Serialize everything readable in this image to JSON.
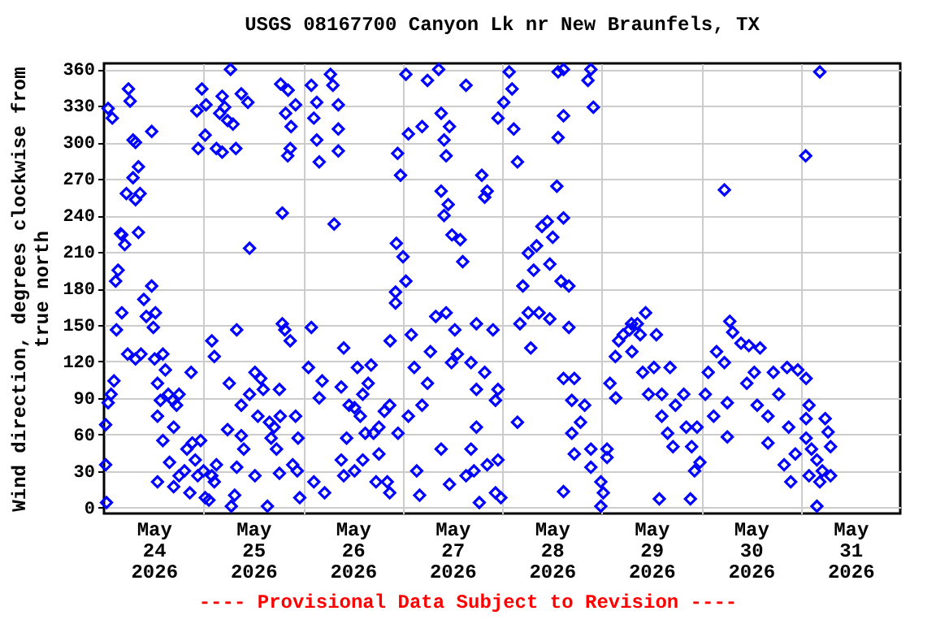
{
  "chart_data": {
    "type": "scatter",
    "title": "USGS 08167700 Canyon Lk nr New Braunfels, TX",
    "ylabel": "Wind direction, degrees clockwise from\ntrue north",
    "annotations": [
      "---- Provisional Data Subject to Revision ----"
    ],
    "xlim": [
      "2026-05-24T00:00",
      "2026-06-01T00:00"
    ],
    "xticks": [
      {
        "value": "2026-05-24T12:00",
        "label": "May\n24\n2026"
      },
      {
        "value": "2026-05-25T12:00",
        "label": "May\n25\n2026"
      },
      {
        "value": "2026-05-26T12:00",
        "label": "May\n26\n2026"
      },
      {
        "value": "2026-05-27T12:00",
        "label": "May\n27\n2026"
      },
      {
        "value": "2026-05-28T12:00",
        "label": "May\n28\n2026"
      },
      {
        "value": "2026-05-29T12:00",
        "label": "May\n29\n2026"
      },
      {
        "value": "2026-05-30T12:00",
        "label": "May\n30\n2026"
      },
      {
        "value": "2026-05-31T12:00",
        "label": "May\n31\n2026"
      },
      {
        "value": "2026-05-25T00:00",
        "label": null
      },
      {
        "value": "2026-05-26T00:00",
        "label": null
      },
      {
        "value": "2026-05-27T00:00",
        "label": null
      },
      {
        "value": "2026-05-28T00:00",
        "label": null
      },
      {
        "value": "2026-05-29T00:00",
        "label": null
      },
      {
        "value": "2026-05-30T00:00",
        "label": null
      },
      {
        "value": "2026-05-31T00:00",
        "label": null
      }
    ],
    "ylim": [
      -5,
      365
    ],
    "yticks": [
      0,
      30,
      60,
      90,
      120,
      150,
      180,
      210,
      240,
      270,
      300,
      330,
      360
    ],
    "grid": true,
    "marker": "diamond",
    "series": [
      {
        "color": "#0000ff",
        "x": [
          "2026-05-24T00:24",
          "2026-05-24T00:36",
          "2026-05-24T00:24",
          "2026-05-24T01:00",
          "2026-05-24T01:42",
          "2026-05-24T02:24",
          "2026-05-24T01:00",
          "2026-05-24T02:00",
          "2026-05-24T02:48",
          "2026-05-24T03:24",
          "2026-05-24T03:00",
          "2026-05-24T04:18",
          "2026-05-24T04:00",
          "2026-05-24T05:00",
          "2026-05-24T04:18",
          "2026-05-24T05:24",
          "2026-05-24T05:54",
          "2026-05-24T06:18",
          "2026-05-24T07:00",
          "2026-05-24T07:36",
          "2026-05-24T07:00",
          "2026-05-24T08:18",
          "2026-05-24T08:42",
          "2026-05-24T07:36",
          "2026-05-24T08:18",
          "2026-05-24T05:42",
          "2026-05-24T07:36",
          "2026-05-24T08:54",
          "2026-05-24T09:36",
          "2026-05-24T10:12",
          "2026-05-24T11:30",
          "2026-05-24T11:54",
          "2026-05-24T12:24",
          "2026-05-24T11:30",
          "2026-05-24T12:12",
          "2026-05-24T14:12",
          "2026-05-24T12:54",
          "2026-05-24T13:36",
          "2026-05-24T14:12",
          "2026-05-24T12:54",
          "2026-05-24T14:48",
          "2026-05-24T15:30",
          "2026-05-24T16:36",
          "2026-05-24T17:30",
          "2026-05-24T18:06",
          "2026-05-24T16:48",
          "2026-05-24T12:54",
          "2026-05-24T15:48",
          "2026-05-24T16:48",
          "2026-05-24T18:06",
          "2026-05-24T19:24",
          "2026-05-24T20:42",
          "2026-05-24T20:00",
          "2026-05-24T21:00",
          "2026-05-24T21:18",
          "2026-05-24T23:18",
          "2026-05-24T22:36",
          "2026-05-24T22:00",
          "2026-05-25T00:24",
          "2026-05-25T01:18",
          "2026-05-25T00:00",
          "2026-05-25T02:00",
          "2026-05-25T03:06",
          "2026-05-25T02:36",
          "2026-05-25T02:00",
          "2026-05-25T02:36",
          "2026-05-24T22:42",
          "2026-05-24T23:36",
          "2026-05-25T00:36",
          "2026-05-25T00:24",
          "2026-05-24T22:24",
          "2026-05-25T03:06",
          "2026-05-25T04:30",
          "2026-05-25T03:54",
          "2026-05-25T05:06",
          "2026-05-25T05:48",
          "2026-05-25T07:06",
          "2026-05-25T04:30",
          "2026-05-25T06:30",
          "2026-05-25T07:48",
          "2026-05-25T09:06",
          "2026-05-25T10:42",
          "2026-05-25T11:06",
          "2026-05-25T08:00",
          "2026-05-25T06:12",
          "2026-05-25T05:48",
          "2026-05-25T06:42",
          "2026-05-25T07:30",
          "2026-05-25T08:00",
          "2026-05-25T09:06",
          "2026-05-25T09:42",
          "2026-05-25T09:06",
          "2026-05-25T11:06",
          "2026-05-25T12:24",
          "2026-05-25T13:48",
          "2026-05-25T14:24",
          "2026-05-25T13:06",
          "2026-05-25T12:24",
          "2026-05-25T15:24",
          "2026-05-25T15:54",
          "2026-05-25T16:18",
          "2026-05-25T17:00",
          "2026-05-25T17:36",
          "2026-05-25T18:18",
          "2026-05-25T18:30",
          "2026-05-25T18:18",
          "2026-05-25T19:00",
          "2026-05-25T19:36",
          "2026-05-25T20:54",
          "2026-05-25T18:36",
          "2026-05-25T20:24",
          "2026-05-25T19:48",
          "2026-05-25T21:06",
          "2026-05-25T22:12",
          "2026-05-25T20:54",
          "2026-05-25T20:18",
          "2026-05-25T19:00",
          "2026-05-25T22:12",
          "2026-05-25T22:48",
          "2026-05-25T22:36",
          "2026-05-25T23:12",
          "2026-05-25T21:30",
          "2026-05-26T02:00",
          "2026-05-26T03:18",
          "2026-05-26T06:36",
          "2026-05-26T07:12",
          "2026-05-26T08:30",
          "2026-05-26T02:36",
          "2026-05-26T03:18",
          "2026-05-26T08:30",
          "2026-05-26T08:30",
          "2026-05-26T03:54",
          "2026-05-26T07:30",
          "2026-05-26T02:00",
          "2026-05-26T01:18",
          "2026-05-26T04:36",
          "2026-05-26T03:54",
          "2026-05-26T09:48",
          "2026-05-26T09:12",
          "2026-05-26T11:06",
          "2026-05-26T12:24",
          "2026-05-26T13:48",
          "2026-05-26T14:24",
          "2026-05-26T15:42",
          "2026-05-26T16:24",
          "2026-05-26T13:06",
          "2026-05-26T10:30",
          "2026-05-26T15:00",
          "2026-05-26T17:00",
          "2026-05-26T18:18",
          "2026-05-26T19:36",
          "2026-05-26T20:54",
          "2026-05-26T22:54",
          "2026-05-26T02:36",
          "2026-05-26T05:12",
          "2026-05-26T09:12",
          "2026-05-26T09:48",
          "2026-05-26T12:24",
          "2026-05-26T14:24",
          "2026-05-26T17:36",
          "2026-05-26T20:18",
          "2026-05-26T20:54",
          "2026-05-26T18:18",
          "2026-05-26T21:00",
          "2026-05-26T22:18",
          "2026-05-26T22:18",
          "2026-05-27T00:48",
          "2026-05-27T06:00",
          "2026-05-27T08:42",
          "2026-05-27T15:18",
          "2026-05-27T01:24",
          "2026-05-26T22:48",
          "2026-05-26T23:30",
          "2026-05-27T04:42",
          "2026-05-27T09:18",
          "2026-05-27T11:18",
          "2026-05-27T10:00",
          "2026-05-27T10:30",
          "2026-05-27T09:18",
          "2026-05-27T11:00",
          "2026-05-27T10:00",
          "2026-05-27T00:06",
          "2026-05-26T22:30",
          "2026-05-27T00:48",
          "2026-05-27T11:54",
          "2026-05-27T13:54",
          "2026-05-27T14:30",
          "2026-05-27T19:06",
          "2026-05-27T20:24",
          "2026-05-27T19:48",
          "2026-05-28T03:42",
          "2026-05-27T02:06",
          "2026-05-27T02:48",
          "2026-05-27T04:42",
          "2026-05-27T06:00",
          "2026-05-27T06:42",
          "2026-05-27T08:00",
          "2026-05-27T10:30",
          "2026-05-27T12:36",
          "2026-05-27T13:12",
          "2026-05-27T17:48",
          "2026-05-27T21:48",
          "2026-05-27T11:48",
          "2026-05-27T16:30",
          "2026-05-27T17:48",
          "2026-05-27T19:48",
          "2026-05-27T22:24",
          "2026-05-27T23:00",
          "2026-05-27T01:24",
          "2026-05-27T03:24",
          "2026-05-27T04:06",
          "2026-05-27T09:18",
          "2026-05-27T11:18",
          "2026-05-27T15:18",
          "2026-05-27T16:30",
          "2026-05-27T17:48",
          "2026-05-27T17:12",
          "2026-05-27T20:24",
          "2026-05-27T18:30",
          "2026-05-27T22:24",
          "2026-05-27T23:00",
          "2026-05-27T23:42",
          "2026-05-28T01:42",
          "2026-05-28T02:24",
          "2026-05-28T00:24",
          "2026-05-27T23:00",
          "2026-05-28T02:48",
          "2026-05-28T13:30",
          "2026-05-28T14:48",
          "2026-05-28T21:24",
          "2026-05-28T20:42",
          "2026-05-28T22:00",
          "2026-05-28T13:30",
          "2026-05-28T14:48",
          "2026-05-28T13:12",
          "2026-05-28T09:36",
          "2026-05-28T10:54",
          "2026-05-28T14:48",
          "2026-05-28T06:18",
          "2026-05-28T08:18",
          "2026-05-28T12:12",
          "2026-05-28T11:30",
          "2026-05-28T05:00",
          "2026-05-28T07:36",
          "2026-05-28T14:12",
          "2026-05-28T16:06",
          "2026-05-28T04:18",
          "2026-05-28T06:18",
          "2026-05-28T08:54",
          "2026-05-28T11:30",
          "2026-05-28T16:06",
          "2026-05-28T06:54",
          "2026-05-28T03:42",
          "2026-05-28T14:48",
          "2026-05-28T17:24",
          "2026-05-28T16:48",
          "2026-05-28T19:54",
          "2026-05-28T16:48",
          "2026-05-28T18:54",
          "2026-05-28T21:24",
          "2026-05-28T17:24",
          "2026-05-29T01:18",
          "2026-05-29T01:18",
          "2026-05-28T21:24",
          "2026-05-28T23:48",
          "2026-05-29T00:24",
          "2026-05-28T23:48",
          "2026-05-28T14:48",
          "2026-05-29T02:00",
          "2026-05-29T03:18",
          "2026-05-29T05:12",
          "2026-05-29T07:12",
          "2026-05-29T04:06",
          "2026-05-29T06:42",
          "2026-05-29T08:36",
          "2026-05-29T10:36",
          "2026-05-29T07:18",
          "2026-05-29T09:18",
          "2026-05-29T13:12",
          "2026-05-29T09:54",
          "2026-05-29T11:18",
          "2026-05-29T12:36",
          "2026-05-29T16:30",
          "2026-05-29T14:30",
          "2026-05-29T14:30",
          "2026-05-29T15:54",
          "2026-05-29T17:12",
          "2026-05-29T17:48",
          "2026-05-29T19:48",
          "2026-05-29T20:24",
          "2026-05-29T21:42",
          "2026-05-29T23:00",
          "2026-05-29T22:24",
          "2026-05-29T23:42",
          "2026-05-29T13:54",
          "2026-05-29T21:24",
          "2026-05-29T03:24",
          "2026-05-30T01:00",
          "2026-05-30T01:42",
          "2026-05-30T03:42",
          "2026-05-30T05:36",
          "2026-05-30T06:54",
          "2026-05-30T07:36",
          "2026-05-30T09:36",
          "2026-05-30T11:30",
          "2026-05-30T14:12",
          "2026-05-30T11:00",
          "2026-05-30T12:48",
          "2026-05-30T03:00",
          "2026-05-30T06:18",
          "2026-05-30T06:18",
          "2026-05-30T05:36",
          "2026-05-30T13:30",
          "2026-05-30T16:06",
          "2026-05-30T17:24",
          "2026-05-30T20:42",
          "2026-05-30T18:42",
          "2026-05-30T16:06",
          "2026-05-30T20:00",
          "2026-05-30T21:36",
          "2026-05-30T22:42",
          "2026-05-30T21:06",
          "2026-05-30T23:18",
          "2026-05-31T01:18",
          "2026-05-31T02:00",
          "2026-05-31T01:18",
          "2026-05-31T01:18",
          "2026-05-31T02:36",
          "2026-05-31T03:54",
          "2026-05-31T04:36",
          "2026-05-31T05:12",
          "2026-05-31T05:54",
          "2026-05-31T06:36",
          "2026-05-31T07:12",
          "2026-05-31T07:12",
          "2026-05-31T02:00",
          "2026-05-31T03:54",
          "2026-05-31T01:12",
          "2026-05-31T04:36"
        ],
        "values": [
          35,
          4,
          68,
          86,
          93,
          104,
          328,
          320,
          186,
          195,
          146,
          160,
          225,
          216,
          224,
          258,
          344,
          334,
          302,
          300,
          271,
          280,
          258,
          253,
          226,
          126,
          122,
          126,
          171,
          157,
          182,
          148,
          160,
          309,
          122,
          126,
          102,
          88,
          55,
          75,
          113,
          93,
          88,
          84,
          93,
          66,
          21,
          37,
          17,
          26,
          30,
          12,
          48,
          111,
          53,
          55,
          26,
          39,
          8,
          6,
          30,
          26,
          35,
          21,
          137,
          124,
          295,
          344,
          331,
          306,
          326,
          295,
          292,
          324,
          329,
          318,
          315,
          338,
          360,
          295,
          340,
          333,
          213,
          146,
          102,
          64,
          1,
          10,
          33,
          59,
          48,
          84,
          93,
          111,
          106,
          97,
          75,
          26,
          1,
          70,
          57,
          66,
          48,
          97,
          75,
          28,
          151,
          146,
          137,
          348,
          343,
          324,
          313,
          331,
          295,
          289,
          242,
          75,
          57,
          30,
          8,
          35,
          347,
          333,
          356,
          347,
          331,
          320,
          302,
          311,
          293,
          284,
          233,
          148,
          115,
          104,
          90,
          131,
          99,
          84,
          82,
          75,
          93,
          102,
          117,
          115,
          57,
          61,
          61,
          66,
          79,
          84,
          61,
          21,
          12,
          39,
          26,
          30,
          39,
          21,
          21,
          12,
          44,
          137,
          177,
          168,
          356,
          351,
          360,
          347,
          307,
          291,
          273,
          313,
          324,
          313,
          302,
          289,
          260,
          249,
          240,
          206,
          217,
          186,
          224,
          220,
          202,
          273,
          260,
          255,
          284,
          142,
          115,
          84,
          102,
          128,
          157,
          160,
          146,
          126,
          151,
          146,
          119,
          119,
          97,
          111,
          88,
          97,
          75,
          30,
          10,
          48,
          19,
          26,
          48,
          66,
          30,
          35,
          4,
          12,
          39,
          8,
          358,
          344,
          333,
          320,
          311,
          358,
          360,
          360,
          351,
          329,
          304,
          322,
          264,
          231,
          235,
          238,
          209,
          215,
          222,
          200,
          182,
          195,
          186,
          182,
          151,
          160,
          160,
          155,
          148,
          131,
          70,
          106,
          106,
          88,
          84,
          61,
          70,
          48,
          44,
          48,
          41,
          33,
          21,
          12,
          1,
          13,
          102,
          124,
          142,
          151,
          137,
          146,
          151,
          160,
          128,
          142,
          142,
          111,
          93,
          115,
          115,
          93,
          75,
          61,
          50,
          84,
          93,
          66,
          50,
          66,
          30,
          37,
          7,
          7,
          90,
          93,
          111,
          128,
          119,
          153,
          144,
          135,
          133,
          131,
          102,
          111,
          75,
          86,
          58,
          261,
          84,
          75,
          111,
          115,
          93,
          53,
          35,
          21,
          44,
          66,
          113,
          106,
          84,
          73,
          57,
          48,
          39,
          21,
          30,
          73,
          62,
          50,
          26,
          26,
          1,
          289,
          358
        ]
      }
    ]
  }
}
